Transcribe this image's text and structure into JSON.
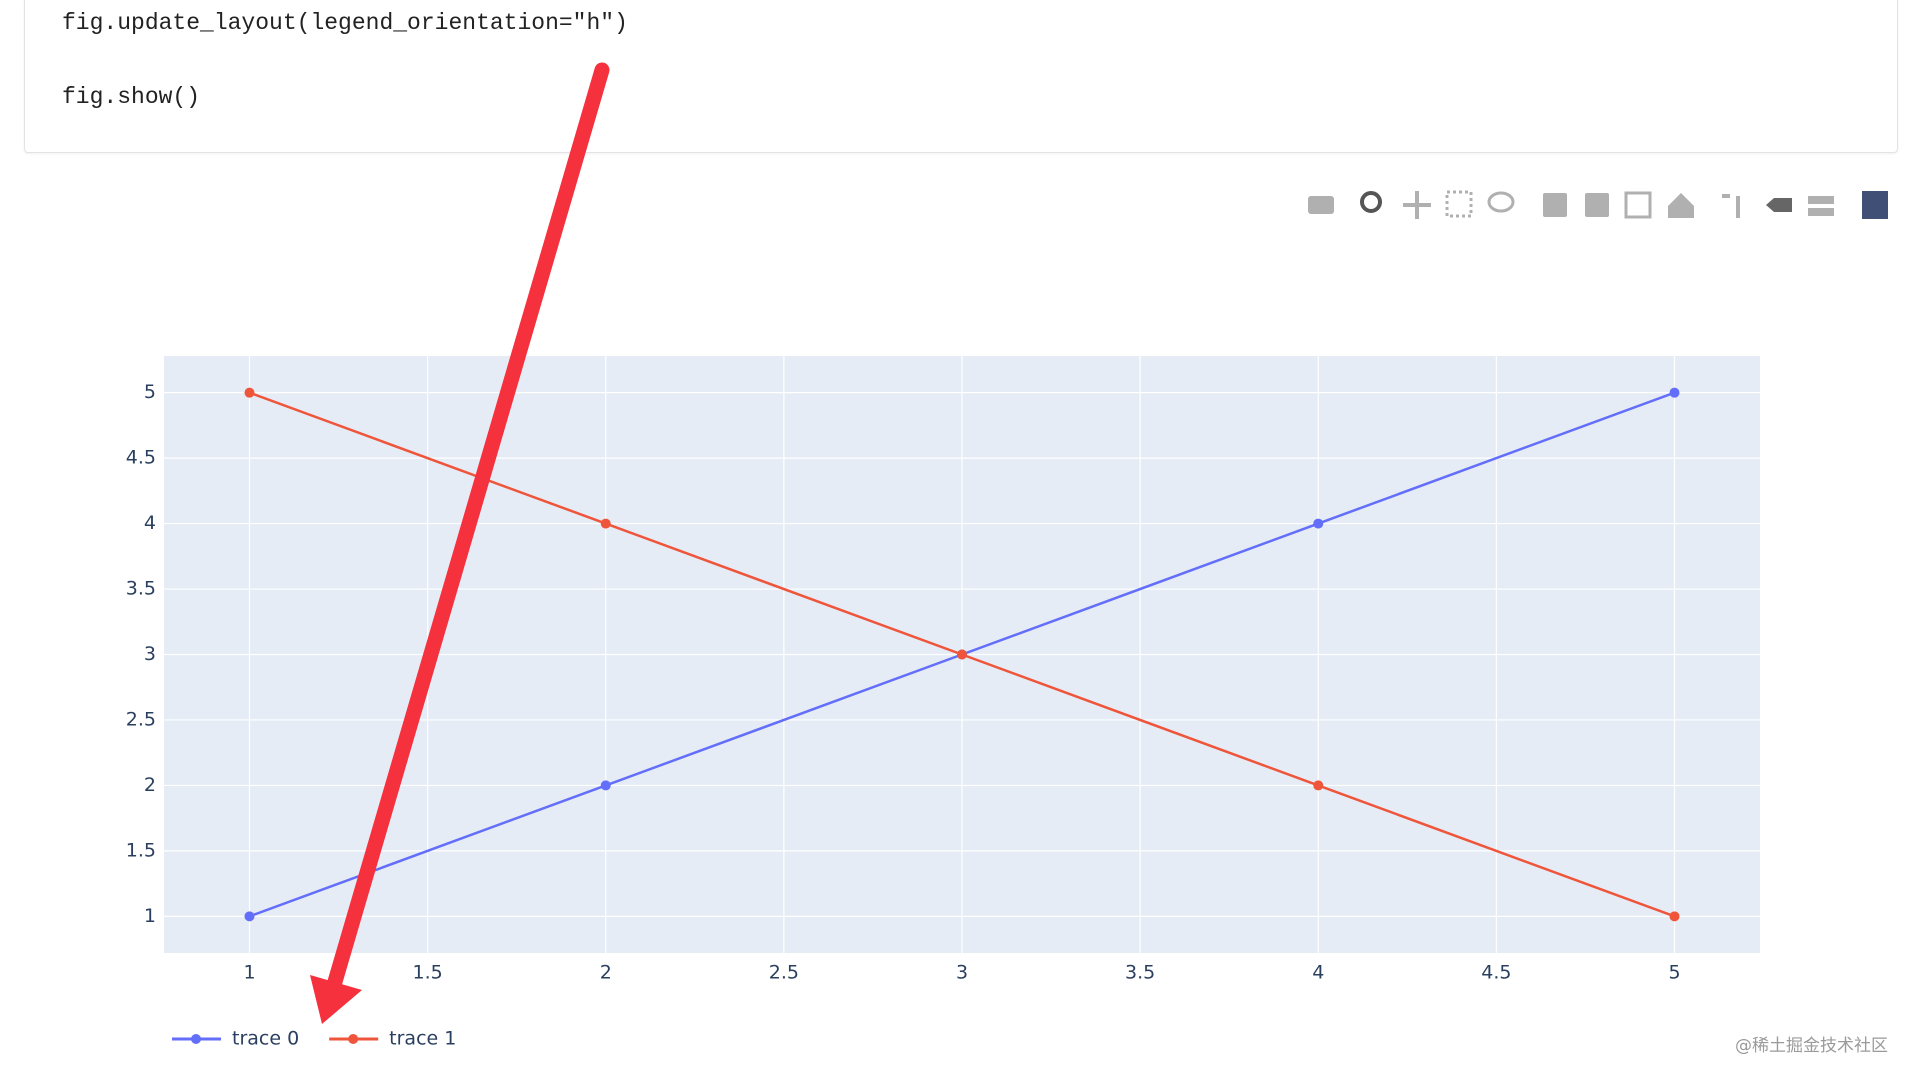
{
  "code": {
    "lines": [
      "fig.update_layout(legend_orientation=\"h\")",
      "fig.show()"
    ]
  },
  "chart_data": {
    "type": "line",
    "x": [
      1,
      2,
      3,
      4,
      5
    ],
    "series": [
      {
        "name": "trace 0",
        "color": "#636efa",
        "values": [
          1,
          2,
          3,
          4,
          5
        ]
      },
      {
        "name": "trace 1",
        "color": "#ef553b",
        "values": [
          5,
          4,
          3,
          2,
          1
        ]
      }
    ],
    "xlim": [
      0.76,
      5.24
    ],
    "ylim": [
      0.72,
      5.28
    ],
    "xticks": [
      1,
      1.5,
      2,
      2.5,
      3,
      3.5,
      4,
      4.5,
      5
    ],
    "yticks": [
      1,
      1.5,
      2,
      2.5,
      3,
      3.5,
      4,
      4.5,
      5
    ],
    "grid": true,
    "legend_orientation": "h",
    "plot_background": "#e5ecf6"
  },
  "watermark": "@稀土掘金技术社区"
}
